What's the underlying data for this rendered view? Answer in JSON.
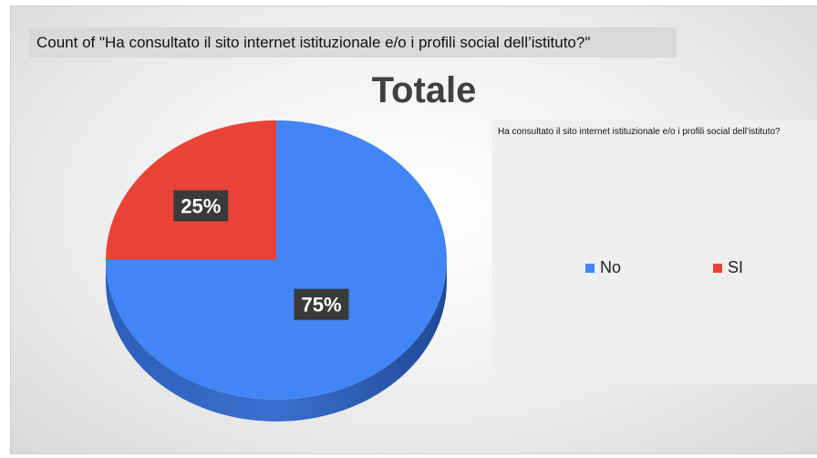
{
  "header": {
    "count_title": "Count of \"Ha consultato il sito internet istituzionale e/o i profili social dell’istituto?\""
  },
  "chart_data": {
    "type": "pie",
    "title": "Totale",
    "legend_title": "Ha consultato il sito internet istituzionale e/o i profili social dell’istituto?",
    "legend_position": "right",
    "categories": [
      "No",
      "SI"
    ],
    "values": [
      75,
      25
    ],
    "data_labels": [
      "75%",
      "25%"
    ],
    "colors": [
      "#4285f4",
      "#ea4335"
    ],
    "style": "3d"
  }
}
